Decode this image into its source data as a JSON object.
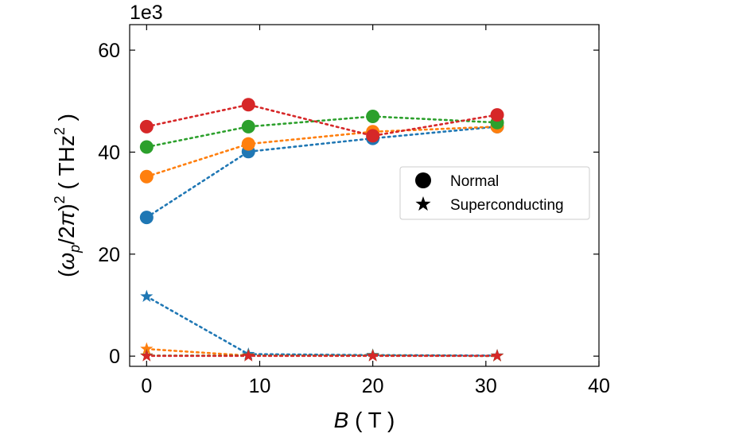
{
  "chart_data": {
    "type": "line",
    "xlabel": "B ( T )",
    "ylabel": "(ω_p/2π)² ( THz² )",
    "offset_text": "1e3",
    "xlim": [
      -1.5,
      40
    ],
    "ylim": [
      -2,
      65
    ],
    "xticks": [
      0,
      10,
      20,
      30,
      40
    ],
    "yticks": [
      0,
      20,
      40,
      60
    ],
    "x": [
      0,
      9,
      20,
      31
    ],
    "legend": {
      "position": "center-right",
      "entries": [
        {
          "label": "Normal",
          "marker": "circle"
        },
        {
          "label": "Superconducting",
          "marker": "star"
        }
      ]
    },
    "series": [
      {
        "color": "#1f77b4",
        "normal": [
          27.2,
          40.1,
          42.7,
          45.0
        ],
        "superconducting": [
          11.7,
          0.4,
          0.2,
          0.1
        ]
      },
      {
        "color": "#ff7f0e",
        "normal": [
          35.2,
          41.6,
          44.0,
          45.0
        ],
        "superconducting": [
          1.4,
          0.1,
          0.1,
          0.05
        ]
      },
      {
        "color": "#2ca02c",
        "normal": [
          41.0,
          45.0,
          47.0,
          45.8
        ],
        "superconducting": [
          0.1,
          0.1,
          0.1,
          0.05
        ]
      },
      {
        "color": "#d62728",
        "normal": [
          45.0,
          49.3,
          43.2,
          47.3
        ],
        "superconducting": [
          0.05,
          0.05,
          0.05,
          0.05
        ]
      }
    ]
  }
}
